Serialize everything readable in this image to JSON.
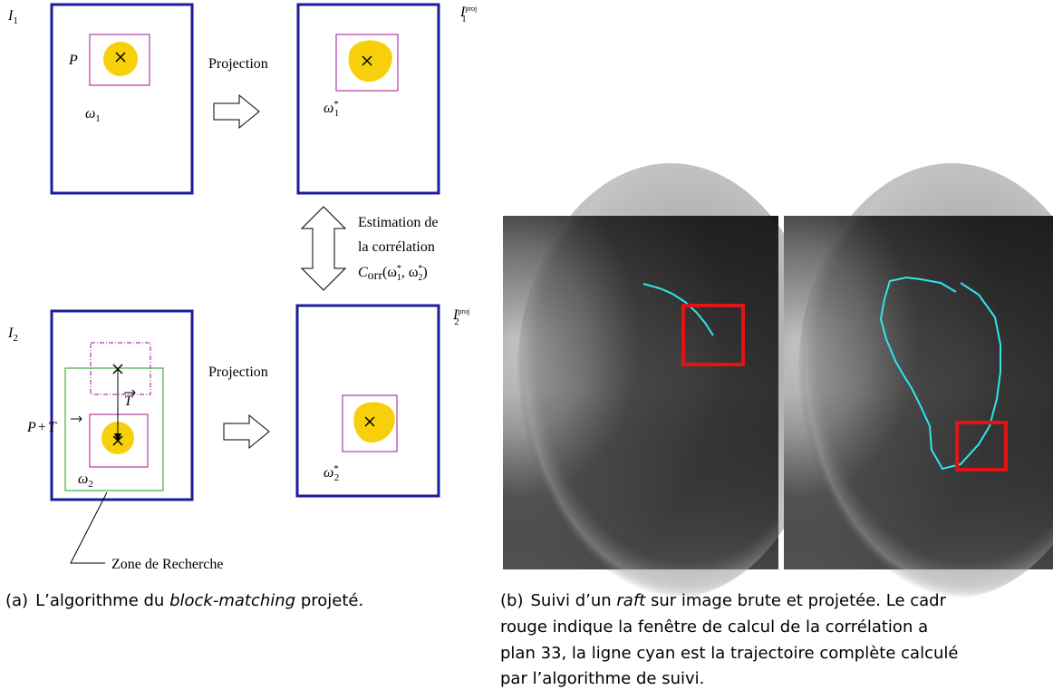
{
  "diagram": {
    "top_left": {
      "image": {
        "base": "I",
        "sub": "1"
      },
      "point": "P",
      "window": {
        "base": "ω",
        "sub": "1"
      }
    },
    "top_right": {
      "image": {
        "base": "I",
        "sub": "1",
        "sup": "proj"
      },
      "window": {
        "base": "ω",
        "sub": "1",
        "sup": "*"
      }
    },
    "projection_top": "Projection",
    "correlation": {
      "lines": [
        "Estimation de",
        "la corrélation"
      ],
      "formula": [
        "C",
        "orr",
        "(ω",
        "1",
        "*",
        ", ω",
        "2",
        "*",
        ")"
      ]
    },
    "bottom_left": {
      "image": {
        "base": "I",
        "sub": "2"
      },
      "vector": "T",
      "shifted_point": [
        "P",
        "+",
        "T"
      ],
      "window": {
        "base": "ω",
        "sub": "2"
      }
    },
    "bottom_right": {
      "image": {
        "base": "I",
        "sub": "2",
        "sup": "proj"
      },
      "window": {
        "base": "ω",
        "sub": "2",
        "sup": "*"
      }
    },
    "projection_bottom": "Projection",
    "search_zone": "Zone de Recherche"
  },
  "captions": {
    "a": {
      "label": "(a)",
      "before": "L’algorithme du ",
      "italic": "block-matching",
      "after": " projeté."
    },
    "b": {
      "label": "(b)",
      "before": "Suivi d’un ",
      "italic": "raft",
      "after": " sur image brute et projetée. Le cadr",
      "lines": [
        "rouge indique la fenêtre de calcul de la corrélation a",
        "plan 33, la ligne cyan est la trajectoire complète calculé",
        "par l’algorithme de suivi."
      ]
    }
  }
}
